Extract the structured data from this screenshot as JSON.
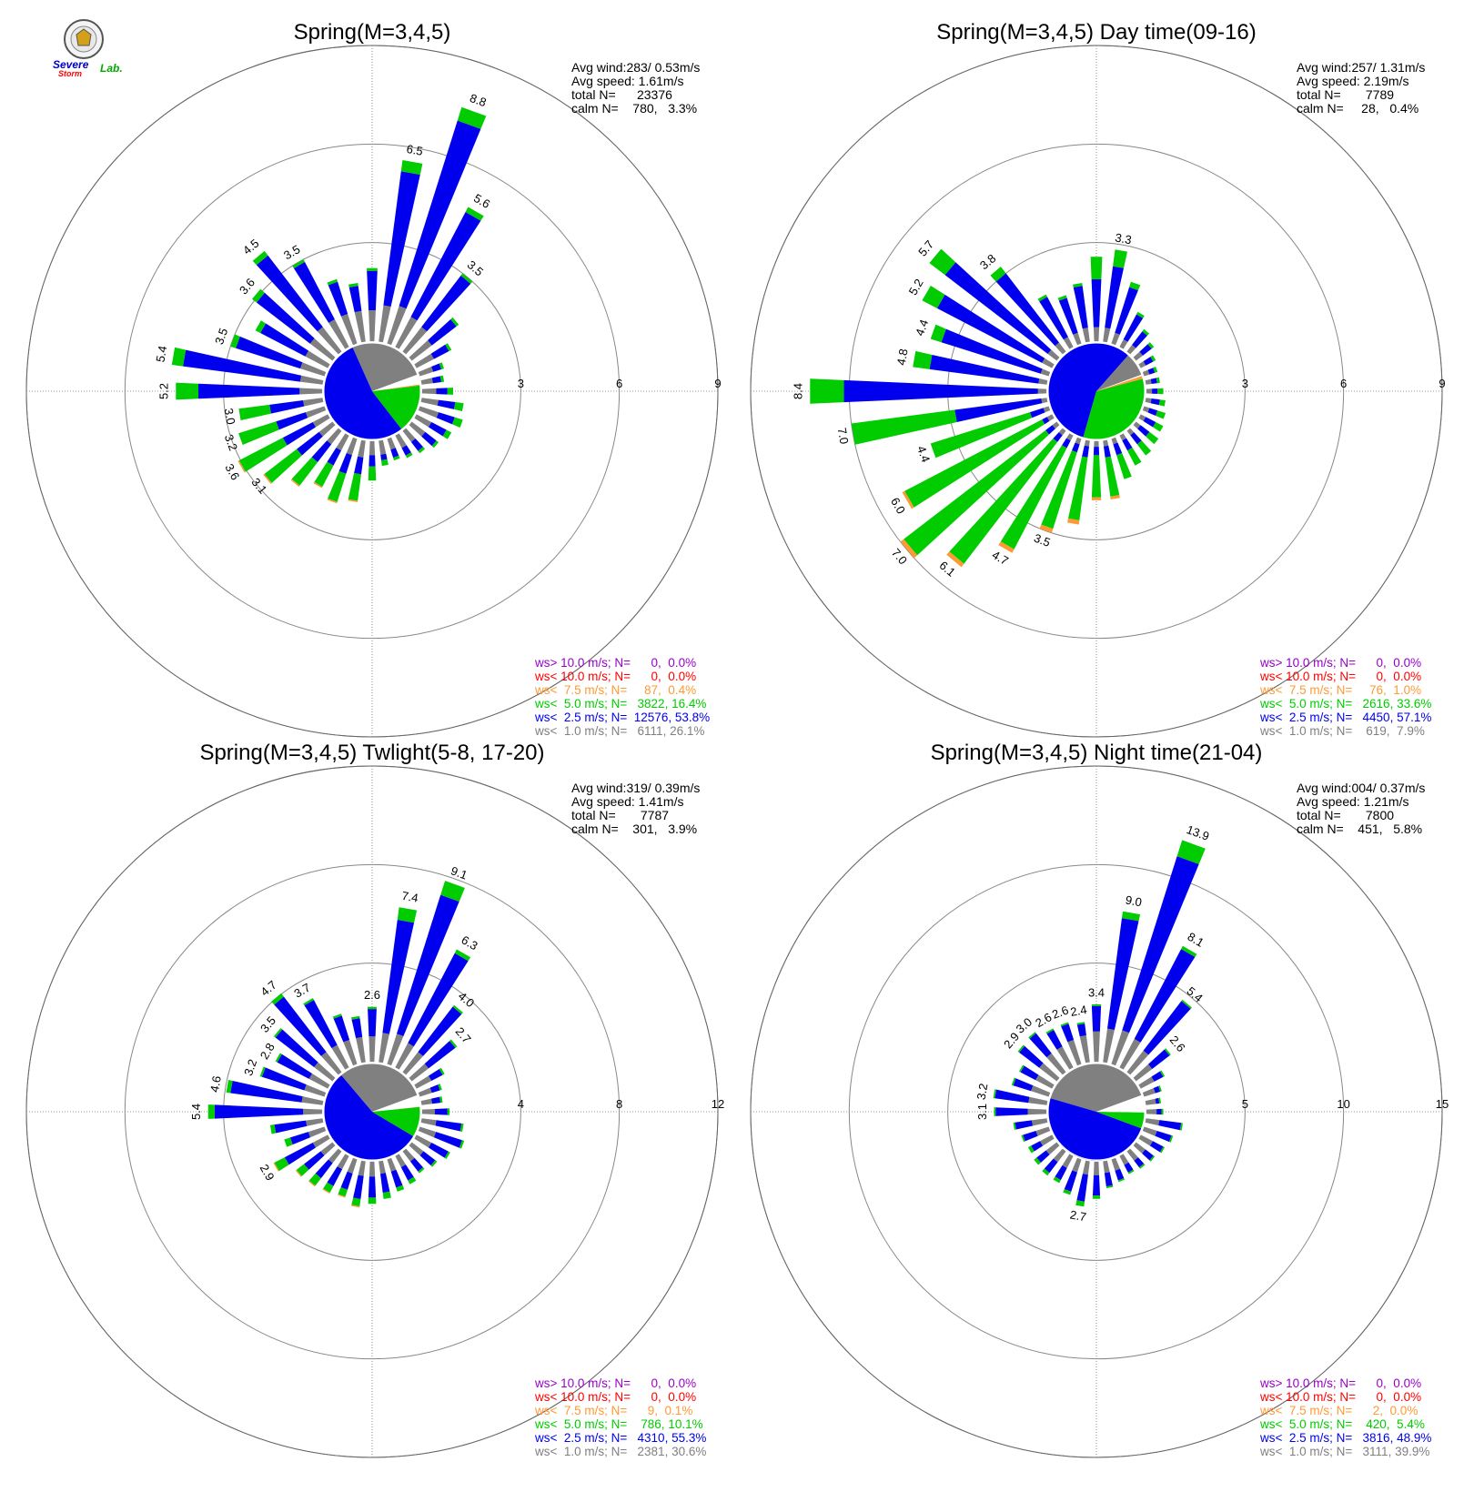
{
  "logo": {
    "text_severe": "Severe",
    "text_storm": "Storm",
    "text_lab": "Lab."
  },
  "colors": {
    "calm_gray": "#808080",
    "low_blue": "#0000ee",
    "mid_green": "#00cc00",
    "high_orange": "#ff9933",
    "red": "#ff0000",
    "purple": "#9900cc",
    "white_slice": "#ffffff"
  },
  "chart_data": [
    {
      "type": "polar-bar",
      "title": "Spring(M=3,4,5)",
      "ring_ticks": [
        "3",
        "6",
        "9"
      ],
      "rmax": 10.5,
      "stats": {
        "avg_wind": "Avg wind:283/ 0.53m/s",
        "avg_speed": "Avg speed: 1.61m/s",
        "total": "total N=      23376",
        "calm": "calm N=    780,   3.3%"
      },
      "legend": [
        {
          "text": "ws> 10.0 m/s; N=      0,  0.0%",
          "color": "#9900cc"
        },
        {
          "text": "ws< 10.0 m/s; N=      0,  0.0%",
          "color": "#ff0000"
        },
        {
          "text": "ws<  7.5 m/s; N=     87,  0.4%",
          "color": "#ff9933"
        },
        {
          "text": "ws<  5.0 m/s; N=   3822, 16.4%",
          "color": "#00cc00"
        },
        {
          "text": "ws<  2.5 m/s; N=  12576, 53.8%",
          "color": "#0000ee"
        },
        {
          "text": "ws<  1.0 m/s; N=   6111, 26.1%",
          "color": "#808080"
        }
      ],
      "pie": [
        0.261,
        0.538,
        0.164,
        0.004,
        0.0,
        0.0
      ],
      "directions_deg": [
        0,
        10,
        20,
        30,
        40,
        50,
        60,
        70,
        80,
        90,
        100,
        110,
        120,
        130,
        140,
        150,
        160,
        170,
        180,
        190,
        200,
        210,
        220,
        230,
        240,
        250,
        260,
        270,
        280,
        290,
        300,
        310,
        320,
        330,
        340,
        350
      ],
      "totals": [
        2.6,
        6.5,
        8.8,
        5.6,
        3.5,
        2.1,
        1.4,
        0.9,
        0.8,
        1.1,
        1.5,
        1.6,
        1.4,
        1.2,
        1.0,
        0.9,
        0.8,
        0.9,
        1.4,
        2.2,
        2.4,
        2.1,
        2.5,
        3.1,
        3.6,
        3.2,
        3.0,
        5.2,
        5.4,
        3.5,
        2.9,
        3.6,
        4.5,
        3.5,
        2.4,
        2.1
      ],
      "series": [
        {
          "name": "ws<  1.0 m/s",
          "values": [
            1.1,
            1.3,
            1.4,
            1.2,
            1.1,
            0.9,
            0.7,
            0.5,
            0.4,
            0.5,
            0.6,
            0.7,
            0.6,
            0.6,
            0.5,
            0.5,
            0.4,
            0.5,
            0.5,
            0.6,
            0.6,
            0.6,
            0.6,
            0.6,
            0.6,
            0.7,
            0.7,
            0.8,
            0.8,
            0.9,
            0.9,
            1.0,
            1.1,
            1.1,
            1.1,
            1.1
          ]
        },
        {
          "name": "ws<  2.5 m/s",
          "values": [
            1.4,
            4.8,
            6.9,
            4.2,
            2.3,
            1.1,
            0.6,
            0.3,
            0.3,
            0.4,
            0.6,
            0.6,
            0.6,
            0.5,
            0.4,
            0.3,
            0.3,
            0.2,
            0.4,
            0.6,
            0.7,
            0.6,
            0.8,
            1.0,
            1.2,
            1.1,
            1.2,
            3.6,
            4.2,
            2.4,
            1.8,
            2.4,
            3.2,
            2.3,
            1.2,
            0.9
          ]
        },
        {
          "name": "ws<  5.0 m/s",
          "values": [
            0.1,
            0.4,
            0.5,
            0.2,
            0.1,
            0.1,
            0.1,
            0.1,
            0.1,
            0.2,
            0.3,
            0.3,
            0.2,
            0.1,
            0.1,
            0.1,
            0.1,
            0.2,
            0.5,
            0.95,
            1.05,
            0.85,
            1.05,
            1.45,
            1.75,
            1.4,
            1.1,
            0.8,
            0.4,
            0.2,
            0.2,
            0.2,
            0.2,
            0.1,
            0.1,
            0.1
          ]
        },
        {
          "name": "ws<  7.5 m/s",
          "values": [
            0,
            0,
            0,
            0,
            0,
            0,
            0,
            0,
            0,
            0,
            0,
            0,
            0,
            0,
            0,
            0,
            0,
            0,
            0,
            0.05,
            0.05,
            0.05,
            0.05,
            0.05,
            0.05,
            0,
            0,
            0,
            0,
            0,
            0,
            0,
            0,
            0,
            0,
            0
          ]
        }
      ]
    },
    {
      "type": "polar-bar",
      "title": "Spring(M=3,4,5) Day time(09-16)",
      "ring_ticks": [
        "3",
        "6",
        "9"
      ],
      "rmax": 10.5,
      "stats": {
        "avg_wind": "Avg wind:257/ 1.31m/s",
        "avg_speed": "Avg speed: 2.19m/s",
        "total": "total N=       7789",
        "calm": "calm N=     28,   0.4%"
      },
      "legend": [
        {
          "text": "ws> 10.0 m/s; N=      0,  0.0%",
          "color": "#9900cc"
        },
        {
          "text": "ws< 10.0 m/s; N=      0,  0.0%",
          "color": "#ff0000"
        },
        {
          "text": "ws<  7.5 m/s; N=     76,  1.0%",
          "color": "#ff9933"
        },
        {
          "text": "ws<  5.0 m/s; N=   2616, 33.6%",
          "color": "#00cc00"
        },
        {
          "text": "ws<  2.5 m/s; N=   4450, 57.1%",
          "color": "#0000ee"
        },
        {
          "text": "ws<  1.0 m/s; N=    619,  7.9%",
          "color": "#808080"
        }
      ],
      "pie": [
        0.079,
        0.571,
        0.336,
        0.01,
        0.0,
        0.0
      ],
      "directions_deg": [
        0,
        10,
        20,
        30,
        40,
        50,
        60,
        70,
        80,
        90,
        100,
        110,
        120,
        130,
        140,
        150,
        160,
        170,
        180,
        190,
        200,
        210,
        220,
        230,
        240,
        250,
        260,
        270,
        280,
        290,
        300,
        310,
        320,
        330,
        340,
        350
      ],
      "totals": [
        3.0,
        3.3,
        2.3,
        1.4,
        1.0,
        0.8,
        0.6,
        0.5,
        0.5,
        0.6,
        0.7,
        0.8,
        0.9,
        1.0,
        1.1,
        1.2,
        1.5,
        2.1,
        2.1,
        3.0,
        3.5,
        4.7,
        6.1,
        7.0,
        6.0,
        4.4,
        7.0,
        8.4,
        4.8,
        4.4,
        5.2,
        5.7,
        3.8,
        2.1,
        1.8,
        2.1
      ],
      "series": [
        {
          "name": "ws<  1.0 m/s",
          "values": [
            0.5,
            0.5,
            0.4,
            0.3,
            0.3,
            0.3,
            0.2,
            0.2,
            0.2,
            0.2,
            0.2,
            0.2,
            0.2,
            0.2,
            0.2,
            0.2,
            0.2,
            0.2,
            0.2,
            0.2,
            0.2,
            0.2,
            0.2,
            0.2,
            0.2,
            0.2,
            0.2,
            0.3,
            0.3,
            0.3,
            0.4,
            0.4,
            0.4,
            0.4,
            0.4,
            0.5
          ]
        },
        {
          "name": "ws<  2.5 m/s",
          "values": [
            1.7,
            2.2,
            1.7,
            1.0,
            0.6,
            0.4,
            0.3,
            0.2,
            0.2,
            0.2,
            0.3,
            0.3,
            0.4,
            0.4,
            0.4,
            0.4,
            0.4,
            0.4,
            0.3,
            0.4,
            0.3,
            0.3,
            0.3,
            0.3,
            0.2,
            0.5,
            3.1,
            6.9,
            3.9,
            3.7,
            4.2,
            4.6,
            3.1,
            1.6,
            1.3,
            1.5
          ]
        },
        {
          "name": "ws<  5.0 m/s",
          "values": [
            0.8,
            0.6,
            0.2,
            0.1,
            0.1,
            0.1,
            0.1,
            0.1,
            0.1,
            0.2,
            0.2,
            0.3,
            0.3,
            0.4,
            0.5,
            0.6,
            0.9,
            1.4,
            1.5,
            2.25,
            2.85,
            4.05,
            5.45,
            6.35,
            5.5,
            3.7,
            3.7,
            1.2,
            0.6,
            0.4,
            0.6,
            0.7,
            0.3,
            0.1,
            0.1,
            0.1
          ]
        },
        {
          "name": "ws<  7.5 m/s",
          "values": [
            0,
            0,
            0,
            0,
            0,
            0,
            0,
            0,
            0,
            0,
            0,
            0,
            0,
            0,
            0,
            0,
            0,
            0.1,
            0.1,
            0.15,
            0.15,
            0.15,
            0.15,
            0.15,
            0.1,
            0,
            0,
            0,
            0,
            0,
            0,
            0,
            0,
            0,
            0,
            0
          ]
        }
      ]
    },
    {
      "type": "polar-bar",
      "title": "Spring(M=3,4,5) Twlight(5-8, 17-20)",
      "ring_ticks": [
        "4",
        "8",
        "12"
      ],
      "rmax": 14,
      "stats": {
        "avg_wind": "Avg wind:319/ 0.39m/s",
        "avg_speed": "Avg speed: 1.41m/s",
        "total": "total N=       7787",
        "calm": "calm N=    301,   3.9%"
      },
      "legend": [
        {
          "text": "ws> 10.0 m/s; N=      0,  0.0%",
          "color": "#9900cc"
        },
        {
          "text": "ws< 10.0 m/s; N=      0,  0.0%",
          "color": "#ff0000"
        },
        {
          "text": "ws<  7.5 m/s; N=      9,  0.1%",
          "color": "#ff9933"
        },
        {
          "text": "ws<  5.0 m/s; N=    786, 10.1%",
          "color": "#00cc00"
        },
        {
          "text": "ws<  2.5 m/s; N=   4310, 55.3%",
          "color": "#0000ee"
        },
        {
          "text": "ws<  1.0 m/s; N=   2381, 30.6%",
          "color": "#808080"
        }
      ],
      "pie": [
        0.306,
        0.553,
        0.101,
        0.001,
        0.0,
        0.0
      ],
      "directions_deg": [
        0,
        10,
        20,
        30,
        40,
        50,
        60,
        70,
        80,
        90,
        100,
        110,
        120,
        130,
        140,
        150,
        160,
        170,
        180,
        190,
        200,
        210,
        220,
        230,
        240,
        250,
        260,
        270,
        280,
        290,
        300,
        310,
        320,
        330,
        340,
        350
      ],
      "totals": [
        2.6,
        7.4,
        9.1,
        6.3,
        4.0,
        2.7,
        1.5,
        1.1,
        1.0,
        1.3,
        2.0,
        2.2,
        1.8,
        1.5,
        1.3,
        1.5,
        1.6,
        1.8,
        2.0,
        2.2,
        1.9,
        2.0,
        2.1,
        2.2,
        2.9,
        2.0,
        2.5,
        5.4,
        4.6,
        3.2,
        2.8,
        3.5,
        4.7,
        3.7,
        2.5,
        2.2
      ],
      "series": [
        {
          "name": "ws<  1.0 m/s",
          "values": [
            1.2,
            1.4,
            1.5,
            1.3,
            1.2,
            1.0,
            0.8,
            0.6,
            0.5,
            0.6,
            0.7,
            0.8,
            0.8,
            0.7,
            0.6,
            0.6,
            0.6,
            0.6,
            0.7,
            0.7,
            0.7,
            0.7,
            0.7,
            0.7,
            0.8,
            0.8,
            0.8,
            0.9,
            1.0,
            1.0,
            1.0,
            1.1,
            1.2,
            1.2,
            1.2,
            1.2
          ]
        },
        {
          "name": "ws<  2.5 m/s",
          "values": [
            1.3,
            5.4,
            6.9,
            4.8,
            2.7,
            1.6,
            0.6,
            0.4,
            0.4,
            0.6,
            1.2,
            1.3,
            0.9,
            0.7,
            0.6,
            0.7,
            0.8,
            0.9,
            1.0,
            1.1,
            0.8,
            0.9,
            0.9,
            1.0,
            1.5,
            0.9,
            1.5,
            4.2,
            3.4,
            2.1,
            1.7,
            2.3,
            3.3,
            2.4,
            1.2,
            0.9
          ]
        },
        {
          "name": "ws<  5.0 m/s",
          "values": [
            0.1,
            0.6,
            0.7,
            0.2,
            0.1,
            0.1,
            0.1,
            0.1,
            0.1,
            0.1,
            0.1,
            0.1,
            0.1,
            0.1,
            0.1,
            0.2,
            0.2,
            0.3,
            0.3,
            0.35,
            0.35,
            0.35,
            0.45,
            0.45,
            0.55,
            0.3,
            0.2,
            0.3,
            0.2,
            0.1,
            0.1,
            0.1,
            0.2,
            0.1,
            0.1,
            0.1
          ]
        },
        {
          "name": "ws<  7.5 m/s",
          "values": [
            0,
            0,
            0,
            0,
            0,
            0,
            0,
            0,
            0,
            0,
            0,
            0,
            0,
            0,
            0,
            0,
            0,
            0,
            0,
            0.05,
            0.05,
            0.05,
            0.05,
            0.05,
            0.05,
            0,
            0,
            0,
            0,
            0,
            0,
            0,
            0,
            0,
            0,
            0
          ]
        }
      ]
    },
    {
      "type": "polar-bar",
      "title": "Spring(M=3,4,5) Night time(21-04)",
      "ring_ticks": [
        "5",
        "10",
        "15"
      ],
      "rmax": 17.5,
      "stats": {
        "avg_wind": "Avg wind:004/ 0.37m/s",
        "avg_speed": "Avg speed: 1.21m/s",
        "total": "total N=       7800",
        "calm": "calm N=    451,   5.8%"
      },
      "legend": [
        {
          "text": "ws> 10.0 m/s; N=      0,  0.0%",
          "color": "#9900cc"
        },
        {
          "text": "ws< 10.0 m/s; N=      0,  0.0%",
          "color": "#ff0000"
        },
        {
          "text": "ws<  7.5 m/s; N=      2,  0.0%",
          "color": "#ff9933"
        },
        {
          "text": "ws<  5.0 m/s; N=    420,  5.4%",
          "color": "#00cc00"
        },
        {
          "text": "ws<  2.5 m/s; N=   3816, 48.9%",
          "color": "#0000ee"
        },
        {
          "text": "ws<  1.0 m/s; N=   3111, 39.9%",
          "color": "#808080"
        }
      ],
      "pie": [
        0.399,
        0.489,
        0.054,
        0.0,
        0.0,
        0.0
      ],
      "directions_deg": [
        0,
        10,
        20,
        30,
        40,
        50,
        60,
        70,
        80,
        90,
        100,
        110,
        120,
        130,
        140,
        150,
        160,
        170,
        180,
        190,
        200,
        210,
        220,
        230,
        240,
        250,
        260,
        270,
        280,
        290,
        300,
        310,
        320,
        330,
        340,
        350
      ],
      "totals": [
        3.4,
        9.0,
        13.9,
        8.1,
        5.4,
        2.6,
        1.6,
        1.1,
        0.9,
        1.0,
        2.2,
        1.8,
        1.6,
        1.4,
        1.3,
        1.2,
        1.4,
        1.6,
        2.2,
        2.7,
        2.2,
        1.8,
        1.8,
        1.7,
        1.6,
        1.7,
        2.0,
        3.1,
        3.2,
        2.3,
        2.2,
        2.9,
        3.0,
        2.6,
        2.6,
        2.4
      ],
      "series": [
        {
          "name": "ws<  1.0 m/s",
          "values": [
            1.8,
            2.0,
            2.1,
            1.9,
            1.6,
            1.2,
            0.9,
            0.7,
            0.6,
            0.6,
            0.8,
            0.8,
            0.8,
            0.7,
            0.7,
            0.6,
            0.7,
            0.7,
            0.8,
            0.8,
            0.8,
            0.8,
            0.8,
            0.8,
            0.8,
            0.8,
            0.9,
            1.1,
            1.1,
            1.1,
            1.1,
            1.3,
            1.4,
            1.4,
            1.5,
            1.6
          ]
        },
        {
          "name": "ws<  2.5 m/s",
          "values": [
            1.5,
            6.6,
            10.8,
            6.0,
            3.7,
            1.3,
            0.6,
            0.3,
            0.2,
            0.3,
            1.3,
            0.9,
            0.7,
            0.6,
            0.5,
            0.5,
            0.6,
            0.8,
            1.2,
            1.6,
            1.2,
            0.8,
            0.8,
            0.7,
            0.6,
            0.8,
            1.0,
            1.9,
            2.0,
            1.1,
            1.0,
            1.5,
            1.5,
            1.1,
            1.0,
            0.7
          ]
        },
        {
          "name": "ws<  5.0 m/s",
          "values": [
            0.1,
            0.4,
            1.0,
            0.2,
            0.1,
            0.1,
            0.1,
            0.1,
            0.1,
            0.1,
            0.1,
            0.1,
            0.1,
            0.1,
            0.1,
            0.1,
            0.1,
            0.1,
            0.2,
            0.3,
            0.2,
            0.2,
            0.2,
            0.2,
            0.2,
            0.1,
            0.1,
            0.1,
            0.1,
            0.1,
            0.1,
            0.1,
            0.1,
            0.1,
            0.1,
            0.1
          ]
        },
        {
          "name": "ws<  7.5 m/s",
          "values": [
            0,
            0,
            0,
            0,
            0,
            0,
            0,
            0,
            0,
            0,
            0,
            0,
            0,
            0,
            0,
            0,
            0,
            0,
            0,
            0,
            0,
            0,
            0,
            0,
            0,
            0,
            0,
            0,
            0,
            0,
            0,
            0,
            0,
            0,
            0,
            0
          ]
        }
      ]
    }
  ]
}
